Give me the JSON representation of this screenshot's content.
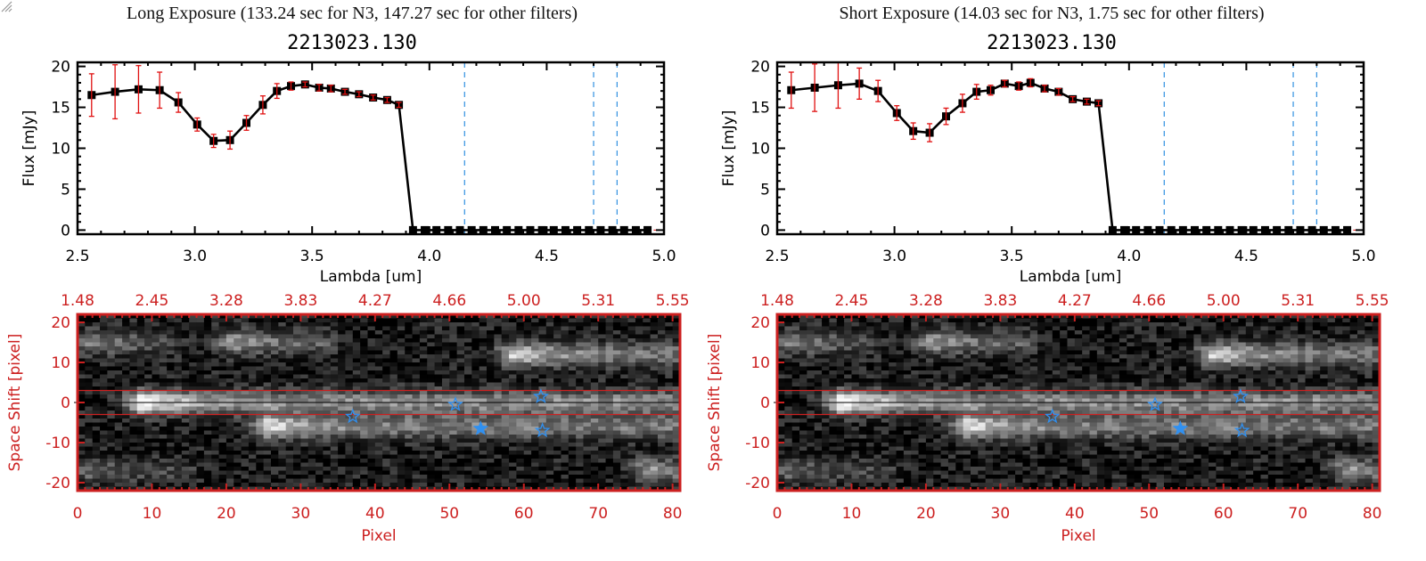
{
  "panels": [
    {
      "title": "Long Exposure (133.24 sec for N3, 147.27 sec for other filters)",
      "object_id": "2213023.130"
    },
    {
      "title": "Short Exposure (14.03 sec for N3, 1.75 sec for other filters)",
      "object_id": "2213023.130"
    }
  ],
  "colors": {
    "line": "#000000",
    "errorbar": "#e01010",
    "filter_line": "#3090e0",
    "image_axis": "#cc2020",
    "star": "#3090f0"
  },
  "chart_data": [
    {
      "type": "line",
      "panel": "long-exposure-spectrum",
      "title": "2213023.130",
      "xlabel": "Lambda [um]",
      "ylabel": "Flux [mJy]",
      "xlim": [
        2.5,
        5.0
      ],
      "ylim": [
        -0.5,
        20.5
      ],
      "xticks": [
        "2.5",
        "3.0",
        "3.5",
        "4.0",
        "4.5",
        "5.0"
      ],
      "yticks": [
        "0",
        "5",
        "10",
        "15",
        "20"
      ],
      "x": [
        2.56,
        2.66,
        2.76,
        2.85,
        2.93,
        3.01,
        3.08,
        3.15,
        3.22,
        3.29,
        3.35,
        3.41,
        3.47,
        3.53,
        3.58,
        3.64,
        3.7,
        3.76,
        3.82,
        3.87,
        3.93,
        3.98,
        4.03,
        4.08,
        4.13,
        4.18,
        4.23,
        4.28,
        4.33,
        4.38,
        4.43,
        4.48,
        4.53,
        4.58,
        4.63,
        4.68,
        4.73,
        4.78,
        4.83,
        4.88,
        4.93
      ],
      "y": [
        16.5,
        16.9,
        17.2,
        17.1,
        15.6,
        12.9,
        10.9,
        11.0,
        13.1,
        15.3,
        17.0,
        17.6,
        17.8,
        17.4,
        17.3,
        16.9,
        16.6,
        16.2,
        15.9,
        15.3,
        0,
        0,
        0,
        0,
        0,
        0,
        0,
        0,
        0,
        0,
        0,
        0,
        0,
        0,
        0,
        0,
        0,
        0,
        0,
        0,
        0
      ],
      "yerr": [
        2.6,
        3.3,
        2.9,
        2.2,
        1.2,
        0.8,
        0.8,
        1.1,
        0.9,
        1.1,
        0.9,
        0.5,
        0.3,
        0.4,
        0.4,
        0.3,
        0.3,
        0.3,
        0.3,
        0.3,
        0,
        0,
        0,
        0,
        0,
        0,
        0,
        0,
        0,
        0,
        0,
        0,
        0,
        0,
        0,
        0,
        0,
        0,
        0,
        0,
        0
      ],
      "filter_lines_x": [
        4.15,
        4.7,
        4.8
      ],
      "zero_line": 0
    },
    {
      "type": "line",
      "panel": "short-exposure-spectrum",
      "title": "2213023.130",
      "xlabel": "Lambda [um]",
      "ylabel": "Flux [mJy]",
      "xlim": [
        2.5,
        5.0
      ],
      "ylim": [
        -0.5,
        20.5
      ],
      "xticks": [
        "2.5",
        "3.0",
        "3.5",
        "4.0",
        "4.5",
        "5.0"
      ],
      "yticks": [
        "0",
        "5",
        "10",
        "15",
        "20"
      ],
      "x": [
        2.56,
        2.66,
        2.76,
        2.85,
        2.93,
        3.01,
        3.08,
        3.15,
        3.22,
        3.29,
        3.35,
        3.41,
        3.47,
        3.53,
        3.58,
        3.64,
        3.7,
        3.76,
        3.82,
        3.87,
        3.93,
        3.98,
        4.03,
        4.08,
        4.13,
        4.18,
        4.23,
        4.28,
        4.33,
        4.38,
        4.43,
        4.48,
        4.53,
        4.58,
        4.63,
        4.68,
        4.73,
        4.78,
        4.83,
        4.88,
        4.93
      ],
      "y": [
        17.1,
        17.4,
        17.7,
        17.9,
        17.0,
        14.3,
        12.1,
        11.9,
        13.9,
        15.5,
        16.9,
        17.1,
        17.9,
        17.6,
        18.0,
        17.3,
        16.9,
        16.0,
        15.7,
        15.5,
        0,
        0,
        0,
        0,
        0,
        0,
        0,
        0,
        0,
        0,
        0,
        0,
        0,
        0,
        0,
        0,
        0,
        0,
        0,
        0,
        0
      ],
      "yerr": [
        2.2,
        2.9,
        2.8,
        1.9,
        1.3,
        0.9,
        1.0,
        1.1,
        1.0,
        1.1,
        0.9,
        0.6,
        0.4,
        0.5,
        0.5,
        0.4,
        0.4,
        0.3,
        0.3,
        0.3,
        0,
        0,
        0,
        0,
        0,
        0,
        0,
        0,
        0,
        0,
        0,
        0,
        0,
        0,
        0,
        0,
        0,
        0,
        0,
        0,
        0
      ],
      "filter_lines_x": [
        4.15,
        4.7,
        4.8
      ],
      "zero_line": 0
    },
    {
      "type": "heatmap",
      "panel": "long-exposure-image",
      "xlabel": "Pixel",
      "ylabel": "Space Shift [pixel]",
      "xlim": [
        0,
        81
      ],
      "ylim": [
        -22,
        22
      ],
      "xticks": [
        "0",
        "10",
        "20",
        "30",
        "40",
        "50",
        "60",
        "70",
        "80"
      ],
      "yticks": [
        "-20",
        "-10",
        "0",
        "10",
        "20"
      ],
      "top_xticks": [
        "1.48",
        "2.45",
        "3.28",
        "3.83",
        "4.27",
        "4.66",
        "5.00",
        "5.31",
        "5.55"
      ],
      "aperture_lines_y": [
        3,
        -3
      ],
      "center_line_y": 0,
      "sources": [
        {
          "x": 9,
          "y": 0,
          "length": 72,
          "peak": 1.0
        },
        {
          "x": 26,
          "y": -6,
          "length": 55,
          "peak": 0.8
        },
        {
          "x": 59,
          "y": 12,
          "length": 22,
          "peak": 0.75
        },
        {
          "x": 21,
          "y": 15,
          "length": 12,
          "peak": 0.5
        },
        {
          "x": 2,
          "y": 15,
          "length": 10,
          "peak": 0.4
        },
        {
          "x": 77,
          "y": -17,
          "length": 4,
          "peak": 0.5
        },
        {
          "x": 2,
          "y": -17,
          "length": 12,
          "peak": 0.3
        }
      ],
      "stars": [
        {
          "x": 37,
          "y": -3.5,
          "filled": false
        },
        {
          "x": 50.8,
          "y": -0.5,
          "filled": false
        },
        {
          "x": 62.3,
          "y": 1.5,
          "filled": false
        },
        {
          "x": 54.2,
          "y": -6.5,
          "filled": true
        },
        {
          "x": 62.5,
          "y": -7,
          "filled": false
        }
      ]
    },
    {
      "type": "heatmap",
      "panel": "short-exposure-image",
      "xlabel": "Pixel",
      "ylabel": "Space Shift [pixel]",
      "xlim": [
        0,
        81
      ],
      "ylim": [
        -22,
        22
      ],
      "xticks": [
        "0",
        "10",
        "20",
        "30",
        "40",
        "50",
        "60",
        "70",
        "80"
      ],
      "yticks": [
        "-20",
        "-10",
        "0",
        "10",
        "20"
      ],
      "top_xticks": [
        "1.48",
        "2.45",
        "3.28",
        "3.83",
        "4.27",
        "4.66",
        "5.00",
        "5.31",
        "5.55"
      ],
      "aperture_lines_y": [
        3,
        -3
      ],
      "center_line_y": 0,
      "sources": [
        {
          "x": 9,
          "y": 0,
          "length": 72,
          "peak": 1.0
        },
        {
          "x": 26,
          "y": -6,
          "length": 55,
          "peak": 0.8
        },
        {
          "x": 59,
          "y": 12,
          "length": 22,
          "peak": 0.75
        },
        {
          "x": 21,
          "y": 15,
          "length": 12,
          "peak": 0.5
        },
        {
          "x": 2,
          "y": 15,
          "length": 10,
          "peak": 0.4
        },
        {
          "x": 77,
          "y": -17,
          "length": 4,
          "peak": 0.5
        },
        {
          "x": 2,
          "y": -17,
          "length": 12,
          "peak": 0.3
        }
      ],
      "stars": [
        {
          "x": 37,
          "y": -3.5,
          "filled": false
        },
        {
          "x": 50.8,
          "y": -0.5,
          "filled": false
        },
        {
          "x": 62.3,
          "y": 1.5,
          "filled": false
        },
        {
          "x": 54.2,
          "y": -6.5,
          "filled": true
        },
        {
          "x": 62.5,
          "y": -7,
          "filled": false
        }
      ]
    }
  ]
}
